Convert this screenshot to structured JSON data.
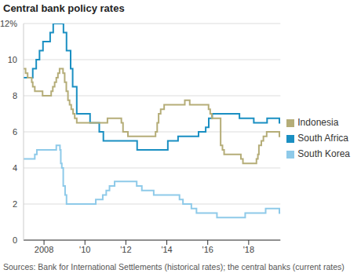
{
  "chart_data": {
    "type": "line",
    "title": "Central bank policy rates",
    "source": "Sources: Bank for International Settlements (historical rates); the central banks (current rates)",
    "line_style": "step",
    "grid": true,
    "legend": "right",
    "xlim": [
      2007.0,
      2019.55
    ],
    "xticks": [
      2008,
      {
        "value": 2010,
        "label": "'10"
      },
      {
        "value": 2012,
        "label": "'12"
      },
      {
        "value": 2014,
        "label": "'14"
      },
      {
        "value": 2016,
        "label": "'16"
      },
      {
        "value": 2018,
        "label": "'18"
      }
    ],
    "ylim": [
      0,
      12
    ],
    "yticks": [
      0,
      2,
      4,
      6,
      8,
      10,
      {
        "value": 12,
        "label": "12%"
      }
    ],
    "series": [
      {
        "name": "South Africa",
        "color": "#1a8fc2",
        "x": [
          2007.0,
          2007.45,
          2007.62,
          2007.78,
          2007.95,
          2008.3,
          2008.45,
          2008.95,
          2009.1,
          2009.3,
          2009.4,
          2009.6,
          2010.25,
          2010.7,
          2010.9,
          2012.55,
          2014.05,
          2014.55,
          2015.55,
          2015.9,
          2016.05,
          2016.22,
          2017.55,
          2018.25,
          2018.9,
          2019.5,
          2019.55
        ],
        "values": [
          9.0,
          9.5,
          10.0,
          10.5,
          11.0,
          11.5,
          12.0,
          11.5,
          10.5,
          9.5,
          8.5,
          7.0,
          6.5,
          6.0,
          5.5,
          5.0,
          5.5,
          5.75,
          6.0,
          6.25,
          6.75,
          7.0,
          6.75,
          6.5,
          6.75,
          6.5,
          6.5
        ]
      },
      {
        "name": "Indonesia",
        "color": "#b5ad78",
        "x": [
          2007.0,
          2007.1,
          2007.2,
          2007.4,
          2007.45,
          2007.55,
          2007.93,
          2008.35,
          2008.43,
          2008.52,
          2008.6,
          2008.68,
          2008.76,
          2008.93,
          2009.01,
          2009.09,
          2009.17,
          2009.25,
          2009.33,
          2009.42,
          2009.5,
          2009.6,
          2011.1,
          2011.78,
          2011.86,
          2012.1,
          2013.45,
          2013.53,
          2013.6,
          2013.7,
          2013.87,
          2014.88,
          2015.12,
          2016.04,
          2016.12,
          2016.2,
          2016.63,
          2016.72,
          2016.8,
          2017.62,
          2017.72,
          2018.38,
          2018.45,
          2018.5,
          2018.62,
          2018.72,
          2018.88,
          2019.5,
          2019.55
        ],
        "values": [
          9.5,
          9.25,
          9.0,
          8.75,
          8.5,
          8.25,
          8.0,
          8.25,
          8.5,
          8.75,
          9.0,
          9.25,
          9.5,
          9.25,
          8.75,
          8.25,
          7.75,
          7.5,
          7.25,
          7.0,
          6.75,
          6.5,
          6.75,
          6.5,
          6.0,
          5.75,
          6.0,
          6.5,
          7.0,
          7.25,
          7.5,
          7.75,
          7.5,
          7.25,
          7.0,
          6.75,
          5.25,
          5.0,
          4.75,
          4.5,
          4.25,
          4.5,
          4.75,
          5.25,
          5.5,
          5.75,
          6.0,
          5.75,
          5.75
        ]
      },
      {
        "name": "South Korea",
        "color": "#8ecae9",
        "x": [
          2007.0,
          2007.55,
          2007.65,
          2008.6,
          2008.78,
          2008.82,
          2008.87,
          2008.94,
          2009.03,
          2009.1,
          2010.53,
          2010.87,
          2011.04,
          2011.2,
          2011.45,
          2012.53,
          2012.78,
          2013.36,
          2014.62,
          2014.79,
          2015.2,
          2015.45,
          2016.45,
          2017.83,
          2018.83,
          2019.5,
          2019.55
        ],
        "values": [
          4.5,
          4.75,
          5.0,
          5.25,
          5.0,
          4.25,
          4.0,
          3.0,
          2.5,
          2.0,
          2.25,
          2.5,
          2.75,
          3.0,
          3.25,
          3.0,
          2.75,
          2.5,
          2.25,
          2.0,
          1.75,
          1.5,
          1.25,
          1.5,
          1.75,
          1.5,
          1.5
        ]
      }
    ]
  }
}
